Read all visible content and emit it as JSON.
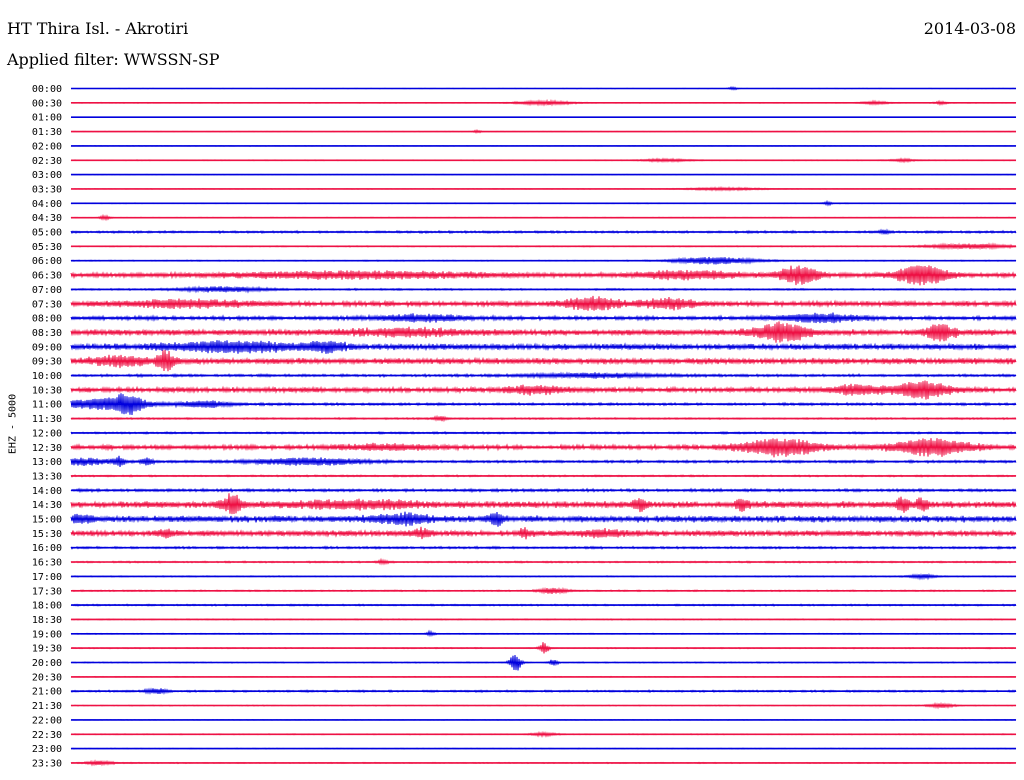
{
  "header": {
    "station": "HT Thira Isl. - Akrotiri",
    "date": "2014-03-08",
    "filter_label": "Applied filter:",
    "filter_name": "WWSSN-SP"
  },
  "chart_data": {
    "type": "line",
    "subtype": "helicorder",
    "channel_label": "EHZ - 5000",
    "colors": {
      "even_rows": "#0000dd",
      "odd_rows": "#ee1144"
    },
    "rows": [
      {
        "label": "00:00",
        "noise": 0.15,
        "events": [
          {
            "x": 0.7,
            "amp": 1.5,
            "w": 0.003
          }
        ]
      },
      {
        "label": "00:30",
        "noise": 0.3,
        "events": [
          {
            "x": 0.5,
            "amp": 2,
            "w": 0.02
          },
          {
            "x": 0.85,
            "amp": 1.5,
            "w": 0.01
          },
          {
            "x": 0.92,
            "amp": 1.5,
            "w": 0.004
          }
        ]
      },
      {
        "label": "01:00",
        "noise": 0.15,
        "events": []
      },
      {
        "label": "01:30",
        "noise": 0.2,
        "events": [
          {
            "x": 0.43,
            "amp": 1.2,
            "w": 0.003
          }
        ]
      },
      {
        "label": "02:00",
        "noise": 0.25,
        "events": []
      },
      {
        "label": "02:30",
        "noise": 0.3,
        "events": [
          {
            "x": 0.63,
            "amp": 1.2,
            "w": 0.02
          },
          {
            "x": 0.88,
            "amp": 1.2,
            "w": 0.01
          }
        ]
      },
      {
        "label": "03:00",
        "noise": 0.2,
        "events": []
      },
      {
        "label": "03:30",
        "noise": 0.25,
        "events": [
          {
            "x": 0.69,
            "amp": 1.2,
            "w": 0.03
          }
        ]
      },
      {
        "label": "04:00",
        "noise": 0.3,
        "events": [
          {
            "x": 0.8,
            "amp": 1.5,
            "w": 0.003
          }
        ]
      },
      {
        "label": "04:30",
        "noise": 0.3,
        "events": [
          {
            "x": 0.035,
            "amp": 2,
            "w": 0.004
          }
        ]
      },
      {
        "label": "05:00",
        "noise": 0.8,
        "events": [
          {
            "x": 0.86,
            "amp": 2,
            "w": 0.004
          }
        ]
      },
      {
        "label": "05:30",
        "noise": 0.4,
        "events": [
          {
            "x": 0.95,
            "amp": 2.5,
            "w": 0.03
          }
        ]
      },
      {
        "label": "06:00",
        "noise": 0.4,
        "events": [
          {
            "x": 0.68,
            "amp": 3.5,
            "w": 0.03
          }
        ]
      },
      {
        "label": "06:30",
        "noise": 1.5,
        "events": [
          {
            "x": 0.3,
            "amp": 3,
            "w": 0.1
          },
          {
            "x": 0.65,
            "amp": 3.5,
            "w": 0.04
          },
          {
            "x": 0.77,
            "amp": 9,
            "w": 0.015
          },
          {
            "x": 0.9,
            "amp": 9,
            "w": 0.02
          }
        ]
      },
      {
        "label": "07:00",
        "noise": 0.6,
        "events": [
          {
            "x": 0.16,
            "amp": 2.5,
            "w": 0.03
          }
        ]
      },
      {
        "label": "07:30",
        "noise": 1.8,
        "events": [
          {
            "x": 0.55,
            "amp": 6,
            "w": 0.02
          },
          {
            "x": 0.63,
            "amp": 4.5,
            "w": 0.02
          },
          {
            "x": 0.12,
            "amp": 3,
            "w": 0.05
          }
        ]
      },
      {
        "label": "08:00",
        "noise": 1.4,
        "events": [
          {
            "x": 0.37,
            "amp": 3,
            "w": 0.03
          },
          {
            "x": 0.79,
            "amp": 4,
            "w": 0.03
          }
        ]
      },
      {
        "label": "08:30",
        "noise": 2.2,
        "events": [
          {
            "x": 0.75,
            "amp": 8,
            "w": 0.02
          },
          {
            "x": 0.92,
            "amp": 8,
            "w": 0.01
          },
          {
            "x": 0.35,
            "amp": 3,
            "w": 0.04
          }
        ]
      },
      {
        "label": "09:00",
        "noise": 2.2,
        "events": [
          {
            "x": 0.17,
            "amp": 4.5,
            "w": 0.05
          },
          {
            "x": 0.27,
            "amp": 4,
            "w": 0.015
          }
        ]
      },
      {
        "label": "09:30",
        "noise": 2.2,
        "events": [
          {
            "x": 0.05,
            "amp": 4.5,
            "w": 0.02
          },
          {
            "x": 0.1,
            "amp": 9,
            "w": 0.006
          }
        ]
      },
      {
        "label": "10:00",
        "noise": 0.9,
        "events": [
          {
            "x": 0.55,
            "amp": 2,
            "w": 0.05
          }
        ]
      },
      {
        "label": "10:30",
        "noise": 1.8,
        "events": [
          {
            "x": 0.49,
            "amp": 3.5,
            "w": 0.02
          },
          {
            "x": 0.9,
            "amp": 8,
            "w": 0.02
          },
          {
            "x": 0.83,
            "amp": 4,
            "w": 0.02
          }
        ]
      },
      {
        "label": "11:00",
        "noise": 0.9,
        "events": [
          {
            "x": 0.03,
            "amp": 4.5,
            "w": 0.03
          },
          {
            "x": 0.06,
            "amp": 8,
            "w": 0.012
          },
          {
            "x": 0.14,
            "amp": 3,
            "w": 0.02
          }
        ]
      },
      {
        "label": "11:30",
        "noise": 0.6,
        "events": [
          {
            "x": 0.39,
            "amp": 2,
            "w": 0.005
          }
        ]
      },
      {
        "label": "12:00",
        "noise": 0.7,
        "events": []
      },
      {
        "label": "12:30",
        "noise": 1.6,
        "events": [
          {
            "x": 0.75,
            "amp": 8,
            "w": 0.03
          },
          {
            "x": 0.91,
            "amp": 8,
            "w": 0.03
          },
          {
            "x": 0.33,
            "amp": 2.5,
            "w": 0.03
          }
        ]
      },
      {
        "label": "13:00",
        "noise": 0.9,
        "events": [
          {
            "x": 0.015,
            "amp": 3,
            "w": 0.02
          },
          {
            "x": 0.05,
            "amp": 4.5,
            "w": 0.004
          },
          {
            "x": 0.08,
            "amp": 4,
            "w": 0.004
          },
          {
            "x": 0.25,
            "amp": 3.5,
            "w": 0.04
          }
        ]
      },
      {
        "label": "13:30",
        "noise": 0.6,
        "events": []
      },
      {
        "label": "14:00",
        "noise": 1,
        "events": []
      },
      {
        "label": "14:30",
        "noise": 2.4,
        "events": [
          {
            "x": 0.17,
            "amp": 9,
            "w": 0.007
          },
          {
            "x": 0.3,
            "amp": 3,
            "w": 0.05
          },
          {
            "x": 0.6,
            "amp": 5,
            "w": 0.005
          },
          {
            "x": 0.71,
            "amp": 5,
            "w": 0.005
          },
          {
            "x": 0.88,
            "amp": 6,
            "w": 0.005
          },
          {
            "x": 0.9,
            "amp": 5,
            "w": 0.005
          }
        ]
      },
      {
        "label": "15:00",
        "noise": 2.4,
        "events": [
          {
            "x": 0.35,
            "amp": 4,
            "w": 0.02
          },
          {
            "x": 0.45,
            "amp": 5,
            "w": 0.006
          },
          {
            "x": 0.01,
            "amp": 3,
            "w": 0.01
          }
        ]
      },
      {
        "label": "15:30",
        "noise": 2,
        "events": [
          {
            "x": 0.1,
            "amp": 4,
            "w": 0.005
          },
          {
            "x": 0.37,
            "amp": 4,
            "w": 0.006
          },
          {
            "x": 0.48,
            "amp": 4,
            "w": 0.005
          },
          {
            "x": 0.56,
            "amp": 2.5,
            "w": 0.02
          }
        ]
      },
      {
        "label": "16:00",
        "noise": 0.8,
        "events": []
      },
      {
        "label": "16:30",
        "noise": 0.6,
        "events": [
          {
            "x": 0.33,
            "amp": 2,
            "w": 0.004
          }
        ]
      },
      {
        "label": "17:00",
        "noise": 0.4,
        "events": [
          {
            "x": 0.9,
            "amp": 2,
            "w": 0.01
          }
        ]
      },
      {
        "label": "17:30",
        "noise": 0.5,
        "events": [
          {
            "x": 0.51,
            "amp": 3,
            "w": 0.01
          }
        ]
      },
      {
        "label": "18:00",
        "noise": 0.6,
        "events": []
      },
      {
        "label": "18:30",
        "noise": 0.4,
        "events": []
      },
      {
        "label": "19:00",
        "noise": 0.4,
        "events": [
          {
            "x": 0.38,
            "amp": 2,
            "w": 0.003
          }
        ]
      },
      {
        "label": "19:30",
        "noise": 0.4,
        "events": [
          {
            "x": 0.5,
            "amp": 6,
            "w": 0.003
          }
        ]
      },
      {
        "label": "20:00",
        "noise": 0.4,
        "events": [
          {
            "x": 0.47,
            "amp": 9,
            "w": 0.004
          },
          {
            "x": 0.51,
            "amp": 3,
            "w": 0.003
          }
        ]
      },
      {
        "label": "20:30",
        "noise": 0.3,
        "events": []
      },
      {
        "label": "21:00",
        "noise": 0.7,
        "events": [
          {
            "x": 0.09,
            "amp": 2.5,
            "w": 0.008
          }
        ]
      },
      {
        "label": "21:30",
        "noise": 0.3,
        "events": [
          {
            "x": 0.92,
            "amp": 2,
            "w": 0.01
          }
        ]
      },
      {
        "label": "22:00",
        "noise": 0.25,
        "events": []
      },
      {
        "label": "22:30",
        "noise": 0.35,
        "events": [
          {
            "x": 0.5,
            "amp": 1.5,
            "w": 0.01
          }
        ]
      },
      {
        "label": "23:00",
        "noise": 0.3,
        "events": []
      },
      {
        "label": "23:30",
        "noise": 0.4,
        "events": [
          {
            "x": 0.03,
            "amp": 2,
            "w": 0.01
          }
        ]
      }
    ]
  }
}
